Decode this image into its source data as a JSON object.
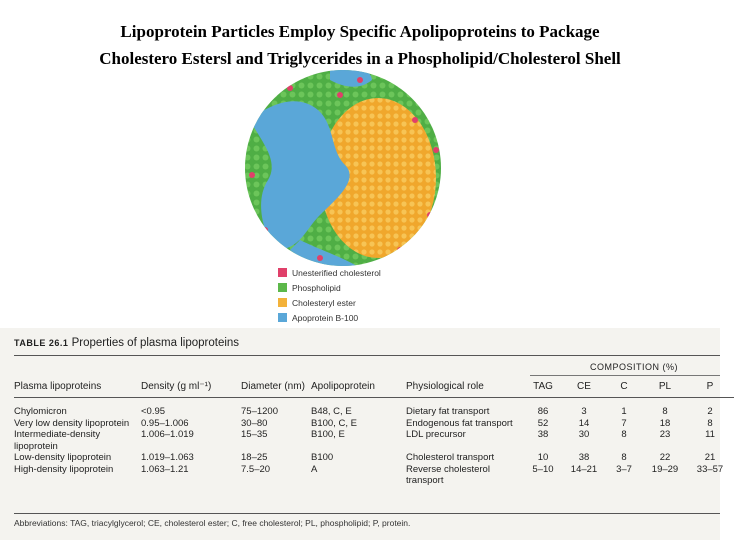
{
  "title": {
    "lines": [
      "Lipoprotein Particles Employ Specific Apolipoproteins to Package",
      "Cholestero Estersl and Triglycerides in a Phospholipid/Cholesterol Shell"
    ]
  },
  "legend": [
    {
      "label": "Unesterified cholesterol",
      "color": "#e0406a"
    },
    {
      "label": "Phospholipid",
      "color": "#5cb84a"
    },
    {
      "label": "Cholesteryl ester",
      "color": "#f3b23a"
    },
    {
      "label": "Apoprotein B-100",
      "color": "#5aa7d8"
    }
  ],
  "table": {
    "caption_label": "TABLE 26.1",
    "caption": "Properties of plasma lipoproteins",
    "group_header": "COMPOSITION (%)",
    "columns": [
      "Plasma lipoproteins",
      "Density (g ml⁻¹)",
      "Diameter (nm)",
      "Apolipoprotein",
      "Physiological role",
      "TAG",
      "CE",
      "C",
      "PL",
      "P"
    ],
    "rows": [
      [
        "Chylomicron",
        "<0.95",
        "75–1200",
        "B48, C, E",
        "Dietary fat transport",
        "86",
        "3",
        "1",
        "8",
        "2"
      ],
      [
        "Very low density lipoprotein",
        "0.95–1.006",
        "30–80",
        "B100, C, E",
        "Endogenous fat transport",
        "52",
        "14",
        "7",
        "18",
        "8"
      ],
      [
        "Intermediate-density lipoprotein",
        "1.006–1.019",
        "15–35",
        "B100, E",
        "LDL precursor",
        "38",
        "30",
        "8",
        "23",
        "11"
      ],
      [
        "Low-density lipoprotein",
        "1.019–1.063",
        "18–25",
        "B100",
        "Cholesterol transport",
        "10",
        "38",
        "8",
        "22",
        "21"
      ],
      [
        "High-density lipoprotein",
        "1.063–1.21",
        "7.5–20",
        "A",
        "Reverse cholesterol transport",
        "5–10",
        "14–21",
        "3–7",
        "19–29",
        "33–57"
      ]
    ],
    "footnote": "Abbreviations: TAG, triacylglycerol; CE, cholesterol ester; C, free cholesterol; PL, phospholipid; P, protein."
  }
}
